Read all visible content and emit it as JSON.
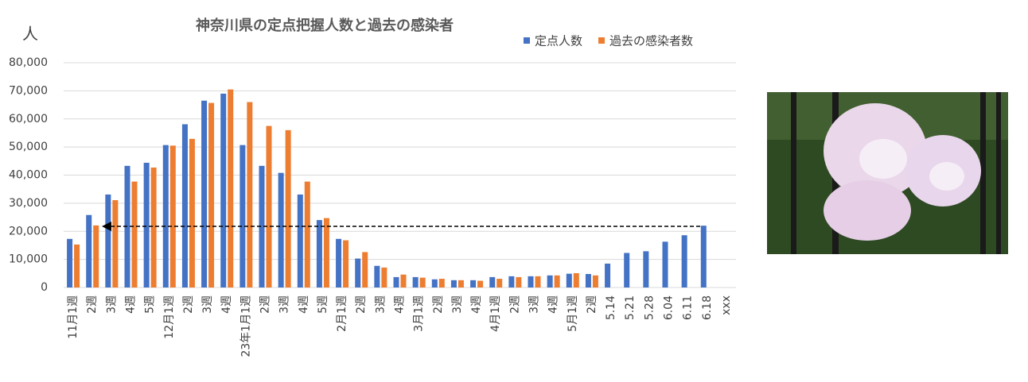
{
  "chart_data": {
    "type": "bar",
    "title": "神奈川県の定点把握人数と過去の感染者",
    "y_label": "人",
    "categories": [
      "11月1週",
      "2週",
      "3週",
      "4週",
      "5週",
      "12月1週",
      "2週",
      "3週",
      "4週",
      "23年1月1週",
      "2週",
      "3週",
      "4週",
      "5週",
      "2月1週",
      "2週",
      "3週",
      "4週",
      "3月1週",
      "2週",
      "3週",
      "4週",
      "4月1週",
      "2週",
      "3週",
      "4週",
      "5月1週",
      "2週",
      "5.14",
      "5.21",
      "5.28",
      "6.04",
      "6.11",
      "6.18",
      "xxx"
    ],
    "series": [
      {
        "name": "定点人数",
        "color": "#4472c4",
        "values": [
          17300,
          25800,
          33100,
          43300,
          44400,
          50700,
          58100,
          66500,
          69000,
          50700,
          43300,
          40800,
          33100,
          24000,
          17300,
          10300,
          7700,
          3700,
          3700,
          2900,
          2600,
          2600,
          3700,
          4000,
          4000,
          4300,
          4900,
          4800,
          8500,
          12300,
          12900,
          16300,
          18600,
          22000,
          null
        ]
      },
      {
        "name": "過去の感染者数",
        "color": "#ed7d31",
        "values": [
          15300,
          22100,
          31100,
          37700,
          42700,
          50500,
          52900,
          65700,
          70500,
          66000,
          57500,
          56000,
          37700,
          24700,
          16800,
          12600,
          7100,
          4600,
          3500,
          3100,
          2600,
          2400,
          3100,
          3700,
          4000,
          4300,
          5100,
          4300,
          null,
          null,
          null,
          null,
          null,
          null,
          null
        ]
      }
    ],
    "ylim": [
      0,
      80000
    ],
    "yticks": [
      0,
      {
        "value": 10000,
        "label": "10,000"
      },
      {
        "value": 20000,
        "label": "20,000"
      },
      {
        "value": 30000,
        "label": "30,000"
      },
      {
        "value": 40000,
        "label": "40,000"
      },
      {
        "value": 50000,
        "label": "50,000"
      },
      {
        "value": 60000,
        "label": "60,000"
      },
      {
        "value": 70000,
        "label": "70,000"
      },
      {
        "value": 80000,
        "label": "80,000"
      }
    ],
    "grid": true
  }
}
